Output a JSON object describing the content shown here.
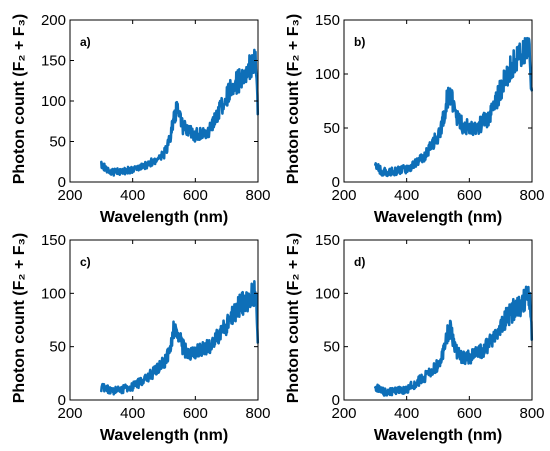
{
  "style": {
    "line_color": "#0e6fb8"
  },
  "chart_data": [
    {
      "type": "line",
      "panel_label": "a)",
      "xlabel": "Wavelength (nm)",
      "ylabel": "Photon count (F₂ + F₃)",
      "xlim": [
        200,
        800
      ],
      "ylim": [
        0,
        200
      ],
      "xticks": [
        200,
        400,
        600,
        800
      ],
      "yticks": [
        0,
        50,
        100,
        150,
        200
      ],
      "series": [
        {
          "x": [
            300,
            320,
            340,
            360,
            380,
            400,
            420,
            440,
            460,
            480,
            500,
            510,
            520,
            530,
            540,
            550,
            560,
            570,
            580,
            600,
            620,
            640,
            660,
            680,
            700,
            720,
            740,
            760,
            770,
            780,
            790,
            795,
            800
          ],
          "y": [
            22,
            14,
            12,
            13,
            14,
            15,
            18,
            20,
            24,
            30,
            35,
            42,
            55,
            75,
            90,
            78,
            68,
            66,
            62,
            58,
            60,
            62,
            75,
            90,
            105,
            120,
            125,
            135,
            140,
            145,
            148,
            140,
            80
          ]
        }
      ]
    },
    {
      "type": "line",
      "panel_label": "b)",
      "xlabel": "Wavelength (nm)",
      "ylabel": "Photon count (F₂ + F₃)",
      "xlim": [
        200,
        800
      ],
      "ylim": [
        0,
        150
      ],
      "xticks": [
        200,
        400,
        600,
        800
      ],
      "yticks": [
        0,
        50,
        100,
        150
      ],
      "series": [
        {
          "x": [
            300,
            320,
            340,
            360,
            380,
            400,
            420,
            440,
            460,
            480,
            500,
            510,
            520,
            530,
            540,
            550,
            560,
            570,
            580,
            600,
            620,
            640,
            660,
            680,
            700,
            720,
            740,
            760,
            770,
            780,
            790,
            795,
            800
          ],
          "y": [
            16,
            10,
            9,
            10,
            11,
            12,
            16,
            20,
            25,
            35,
            42,
            50,
            62,
            78,
            82,
            70,
            60,
            55,
            52,
            50,
            48,
            55,
            60,
            72,
            85,
            100,
            110,
            115,
            120,
            122,
            120,
            110,
            70
          ]
        }
      ]
    },
    {
      "type": "line",
      "panel_label": "c)",
      "xlabel": "Wavelength (nm)",
      "ylabel": "Photon count (F₂ + F₃)",
      "xlim": [
        200,
        800
      ],
      "ylim": [
        0,
        150
      ],
      "xticks": [
        200,
        400,
        600,
        800
      ],
      "yticks": [
        0,
        50,
        100,
        150
      ],
      "series": [
        {
          "x": [
            300,
            320,
            340,
            360,
            380,
            400,
            420,
            440,
            460,
            480,
            500,
            510,
            520,
            530,
            540,
            550,
            560,
            570,
            580,
            600,
            620,
            640,
            660,
            680,
            700,
            720,
            740,
            760,
            770,
            780,
            790,
            795,
            800
          ],
          "y": [
            12,
            10,
            9,
            10,
            11,
            13,
            16,
            20,
            24,
            30,
            35,
            40,
            50,
            65,
            70,
            58,
            50,
            46,
            44,
            45,
            48,
            50,
            55,
            62,
            70,
            80,
            88,
            92,
            95,
            98,
            100,
            90,
            55
          ]
        }
      ]
    },
    {
      "type": "line",
      "panel_label": "d)",
      "xlabel": "Wavelength (nm)",
      "ylabel": "Photon count (F₂ + F₃)",
      "xlim": [
        200,
        800
      ],
      "ylim": [
        0,
        150
      ],
      "xticks": [
        200,
        400,
        600,
        800
      ],
      "yticks": [
        0,
        50,
        100,
        150
      ],
      "series": [
        {
          "x": [
            300,
            320,
            340,
            360,
            380,
            400,
            420,
            440,
            460,
            480,
            500,
            510,
            520,
            530,
            540,
            550,
            560,
            570,
            580,
            600,
            620,
            640,
            660,
            680,
            700,
            720,
            740,
            760,
            770,
            780,
            790,
            795,
            800
          ],
          "y": [
            12,
            8,
            7,
            8,
            9,
            10,
            14,
            18,
            22,
            28,
            33,
            38,
            50,
            62,
            66,
            52,
            45,
            42,
            40,
            40,
            44,
            46,
            52,
            60,
            68,
            78,
            84,
            88,
            92,
            95,
            96,
            88,
            55
          ]
        }
      ]
    }
  ]
}
